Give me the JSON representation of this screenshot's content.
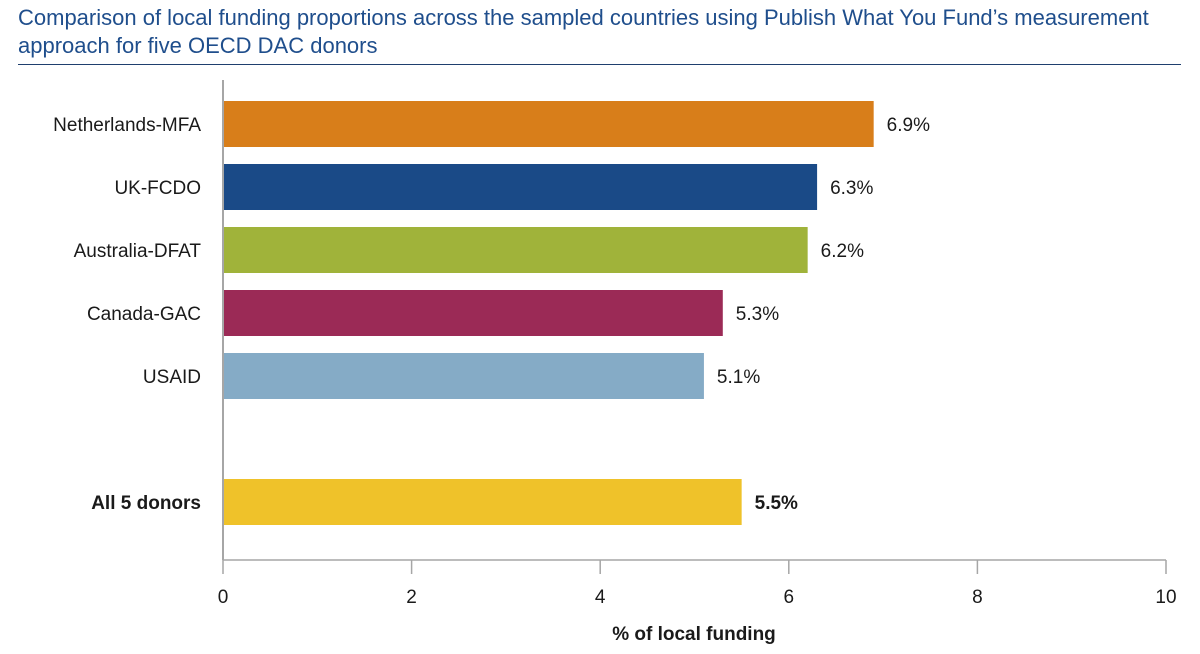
{
  "chart_data": {
    "type": "bar",
    "orientation": "horizontal",
    "title": "Comparison of local funding proportions across the sampled countries using Publish What You Fund’s measurement approach for five OECD DAC donors",
    "xlabel": "% of local funding",
    "ylabel": "",
    "xlim": [
      0,
      10
    ],
    "xticks": [
      "0",
      "2",
      "4",
      "6",
      "8",
      "10"
    ],
    "grid": false,
    "categories": [
      "Netherlands-MFA",
      "UK-FCDO",
      "Australia-DFAT",
      "Canada-GAC",
      "USAID",
      "All 5 donors"
    ],
    "values": [
      6.9,
      6.3,
      6.2,
      5.3,
      5.1,
      5.5
    ],
    "value_labels": [
      "6.9%",
      "6.3%",
      "6.2%",
      "5.3%",
      "5.1%",
      "5.5%"
    ],
    "colors": [
      "#d87e1a",
      "#1a4a87",
      "#a0b33a",
      "#9b2a56",
      "#85abc6",
      "#efc22a"
    ],
    "emphasized": [
      false,
      false,
      false,
      false,
      false,
      true
    ]
  }
}
